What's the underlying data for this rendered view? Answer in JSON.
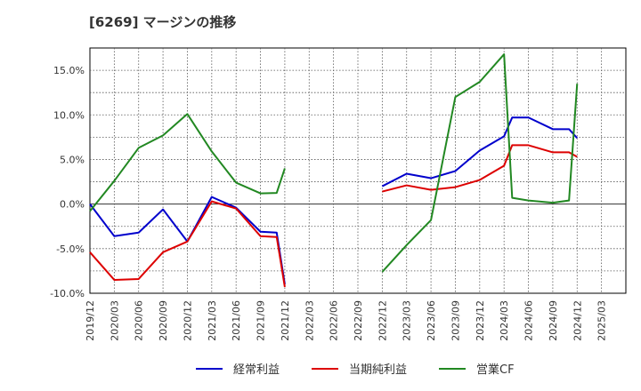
{
  "chart_data": {
    "type": "line",
    "title": "[6269]  マージンの推移",
    "xlabel": "",
    "ylabel": "",
    "ylim": [
      -10,
      17.5
    ],
    "y_ticks": [
      {
        "value": 15,
        "label": "15.0%"
      },
      {
        "value": 10,
        "label": "10.0%"
      },
      {
        "value": 5,
        "label": "5.0%"
      },
      {
        "value": 0,
        "label": "0.0%"
      },
      {
        "value": -5,
        "label": "-5.0%"
      },
      {
        "value": -10,
        "label": "-10.0%"
      }
    ],
    "x_ticks": [
      "2019/12",
      "2020/03",
      "2020/06",
      "2020/09",
      "2020/12",
      "2021/03",
      "2021/06",
      "2021/09",
      "2021/12",
      "2022/03",
      "2022/06",
      "2022/09",
      "2022/12",
      "2023/03",
      "2023/06",
      "2023/09",
      "2023/12",
      "2024/03",
      "2024/06",
      "2024/09",
      "2024/12",
      "2025/03"
    ],
    "grid": true,
    "legend_position": "bottom",
    "series": [
      {
        "name": "経常利益",
        "color": "#0000cc",
        "points": [
          {
            "x": "2019/12",
            "y": 0.0
          },
          {
            "x": "2020/03",
            "y": -3.6
          },
          {
            "x": "2020/06",
            "y": -3.2
          },
          {
            "x": "2020/09",
            "y": -0.6
          },
          {
            "x": "2020/12",
            "y": -4.2
          },
          {
            "x": "2021/03",
            "y": 0.8
          },
          {
            "x": "2021/06",
            "y": -0.4
          },
          {
            "x": "2021/09",
            "y": -3.1
          },
          {
            "x": "2021/11",
            "y": -3.2
          },
          {
            "x": "2021/12",
            "y": -9.0
          },
          {
            "x": "2022/12",
            "y": 2.0
          },
          {
            "x": "2023/03",
            "y": 3.4
          },
          {
            "x": "2023/06",
            "y": 2.9
          },
          {
            "x": "2023/09",
            "y": 3.7
          },
          {
            "x": "2023/12",
            "y": 6.0
          },
          {
            "x": "2024/03",
            "y": 7.6
          },
          {
            "x": "2024/04",
            "y": 9.7
          },
          {
            "x": "2024/06",
            "y": 9.7
          },
          {
            "x": "2024/09",
            "y": 8.4
          },
          {
            "x": "2024/11",
            "y": 8.4
          },
          {
            "x": "2024/12",
            "y": 7.4
          }
        ]
      },
      {
        "name": "当期純利益",
        "color": "#dd0000",
        "points": [
          {
            "x": "2019/12",
            "y": -5.4
          },
          {
            "x": "2020/03",
            "y": -8.5
          },
          {
            "x": "2020/06",
            "y": -8.4
          },
          {
            "x": "2020/09",
            "y": -5.4
          },
          {
            "x": "2020/12",
            "y": -4.2
          },
          {
            "x": "2021/03",
            "y": 0.3
          },
          {
            "x": "2021/06",
            "y": -0.5
          },
          {
            "x": "2021/09",
            "y": -3.6
          },
          {
            "x": "2021/11",
            "y": -3.7
          },
          {
            "x": "2021/12",
            "y": -9.3
          },
          {
            "x": "2022/12",
            "y": 1.4
          },
          {
            "x": "2023/03",
            "y": 2.1
          },
          {
            "x": "2023/06",
            "y": 1.6
          },
          {
            "x": "2023/09",
            "y": 1.9
          },
          {
            "x": "2023/12",
            "y": 2.7
          },
          {
            "x": "2024/03",
            "y": 4.3
          },
          {
            "x": "2024/04",
            "y": 6.6
          },
          {
            "x": "2024/06",
            "y": 6.6
          },
          {
            "x": "2024/09",
            "y": 5.8
          },
          {
            "x": "2024/11",
            "y": 5.8
          },
          {
            "x": "2024/12",
            "y": 5.3
          }
        ]
      },
      {
        "name": "営業CF",
        "color": "#228822",
        "points": [
          {
            "x": "2019/12",
            "y": -0.8
          },
          {
            "x": "2020/03",
            "y": 2.6
          },
          {
            "x": "2020/06",
            "y": 6.3
          },
          {
            "x": "2020/09",
            "y": 7.7
          },
          {
            "x": "2020/12",
            "y": 10.1
          },
          {
            "x": "2021/03",
            "y": 5.9
          },
          {
            "x": "2021/06",
            "y": 2.4
          },
          {
            "x": "2021/09",
            "y": 1.2
          },
          {
            "x": "2021/11",
            "y": 1.25
          },
          {
            "x": "2021/12",
            "y": 4.0
          },
          {
            "x": "2022/12",
            "y": -7.6
          },
          {
            "x": "2023/03",
            "y": -4.6
          },
          {
            "x": "2023/06",
            "y": -1.8
          },
          {
            "x": "2023/09",
            "y": 12.0
          },
          {
            "x": "2023/12",
            "y": 13.7
          },
          {
            "x": "2024/03",
            "y": 16.8
          },
          {
            "x": "2024/04",
            "y": 0.7
          },
          {
            "x": "2024/06",
            "y": 0.4
          },
          {
            "x": "2024/09",
            "y": 0.15
          },
          {
            "x": "2024/11",
            "y": 0.4
          },
          {
            "x": "2024/12",
            "y": 13.5
          }
        ]
      }
    ]
  }
}
